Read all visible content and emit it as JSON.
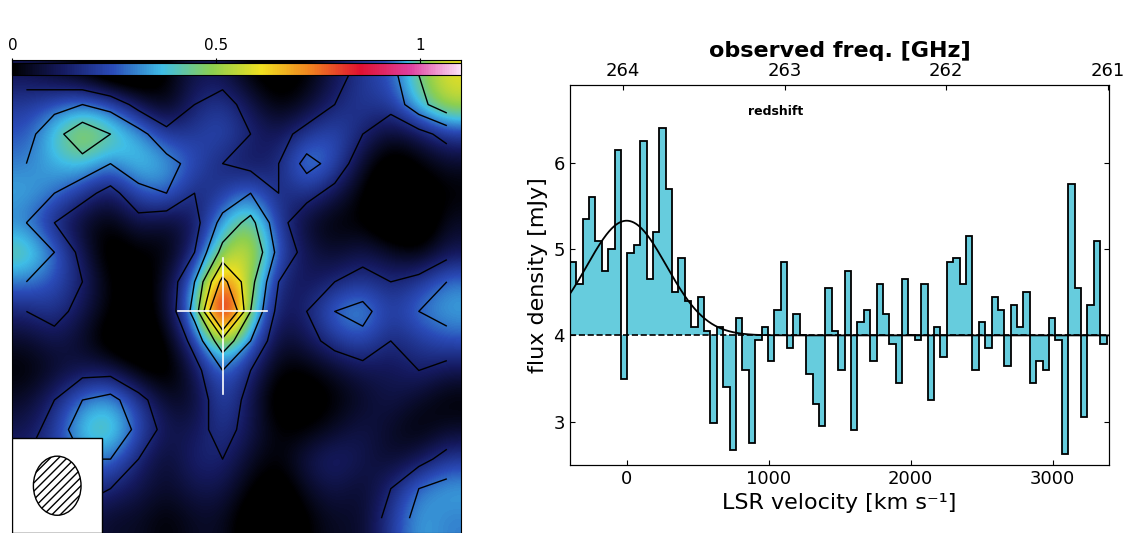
{
  "chart_data": [
    {
      "type": "heatmap",
      "tick_labels": false,
      "color_range": [
        0,
        1.1
      ],
      "color_ticks": [
        0,
        0.5,
        1
      ],
      "contour_levels": [
        -0.15,
        0.15,
        0.3,
        0.45,
        0.6,
        0.75
      ],
      "cells": [
        [
          0.1,
          0.05,
          0,
          -0.1,
          -0.1,
          0,
          0.1,
          0.1,
          0,
          -0.05,
          0,
          0.1,
          0.2,
          0.25,
          0.45,
          0.6
        ],
        [
          0.2,
          0.25,
          0.3,
          0.25,
          0.1,
          0,
          0.15,
          0.2,
          0.1,
          0,
          0.05,
          0.15,
          0.2,
          0.2,
          0.4,
          0.55
        ],
        [
          0.25,
          0.4,
          0.55,
          0.45,
          0.35,
          0.2,
          0.2,
          0.25,
          0.15,
          0.1,
          0.2,
          0.25,
          0.15,
          0.05,
          0.1,
          0.2
        ],
        [
          0.3,
          0.35,
          0.4,
          0.3,
          0.4,
          0.35,
          0.25,
          0.15,
          0.1,
          0.15,
          0.35,
          0.25,
          0.05,
          -0.05,
          0,
          0.05
        ],
        [
          0.35,
          0.3,
          0.2,
          0.1,
          0.25,
          0.3,
          0.15,
          0.2,
          0.3,
          0.15,
          0.2,
          0.1,
          0,
          -0.1,
          -0.05,
          0
        ],
        [
          0.3,
          0.15,
          0.05,
          0,
          0.1,
          0.05,
          0.1,
          0.35,
          0.5,
          0.2,
          0.05,
          0,
          0,
          -0.1,
          -0.1,
          0.05
        ],
        [
          0.45,
          0.3,
          0.1,
          -0.05,
          0,
          0,
          0.15,
          0.5,
          0.6,
          0.25,
          0.1,
          0.05,
          0.1,
          0.05,
          0,
          0.1
        ],
        [
          0.3,
          0.25,
          0.15,
          0,
          -0.05,
          0.05,
          0.3,
          0.8,
          0.5,
          0.15,
          0.1,
          0.15,
          0.2,
          0.15,
          0.2,
          0.3
        ],
        [
          0.15,
          0.2,
          0.1,
          0,
          -0.05,
          0.05,
          0.35,
          1.1,
          0.45,
          0.1,
          0.15,
          0.3,
          0.35,
          0.2,
          0.3,
          0.35
        ],
        [
          0.05,
          0.1,
          0.05,
          -0.05,
          -0.1,
          0,
          0.2,
          0.55,
          0.3,
          0.05,
          0.1,
          0.2,
          0.25,
          0.15,
          0.2,
          0.25
        ],
        [
          0,
          0.05,
          0.1,
          0.1,
          0,
          -0.05,
          0.1,
          0.3,
          0.15,
          0,
          0,
          0.05,
          0.1,
          0.1,
          0.15,
          0.1
        ],
        [
          0.05,
          0.15,
          0.3,
          0.35,
          0.2,
          0.05,
          0.05,
          0.25,
          0.1,
          -0.05,
          -0.05,
          0,
          0.05,
          0.1,
          0.05,
          0
        ],
        [
          0.1,
          0.2,
          0.4,
          0.45,
          0.25,
          0.1,
          0.1,
          0.2,
          0.1,
          0,
          0,
          0.05,
          0.1,
          0.05,
          0,
          0.05
        ],
        [
          0.15,
          0.2,
          0.3,
          0.3,
          0.15,
          0.05,
          0.15,
          0.15,
          0.05,
          0,
          0.1,
          0.15,
          0.1,
          0.05,
          0.1,
          0.2
        ],
        [
          0.1,
          0.15,
          0.2,
          0.15,
          0.1,
          0.05,
          0.1,
          0.1,
          0,
          -0.05,
          0.05,
          0.1,
          0.05,
          0.15,
          0.3,
          0.35
        ],
        [
          0.05,
          0.1,
          0.1,
          0.05,
          0.05,
          0,
          0.05,
          0.05,
          -0.05,
          -0.1,
          0,
          0.05,
          0.05,
          0.2,
          0.35,
          0.3
        ]
      ]
    },
    {
      "type": "histogram",
      "color": "#66ccdd",
      "x_label": "LSR velocity [km s⁻¹]",
      "y_label": "flux density [mJy]",
      "x2_label": "observed freq. [GHz]",
      "xlim": [
        -400,
        3400
      ],
      "xticks": [
        0,
        1000,
        2000,
        3000
      ],
      "ylim": [
        2.5,
        6.9
      ],
      "yticks": [
        3,
        4,
        5,
        6
      ],
      "x2lim": [
        264.33,
        260.99
      ],
      "x2ticks": [
        264,
        263,
        262,
        261
      ],
      "baseline": 4.0,
      "fit": {
        "center": 0,
        "peak": 5.33,
        "fwhm": 660
      },
      "annotations": [
        {
          "text": "redshift",
          "x": 1050,
          "y": 6.6
        }
      ],
      "bins": [
        -400,
        -355,
        -310,
        -265,
        -220,
        -175,
        -130,
        -85,
        -40,
        5,
        50,
        95,
        140,
        185,
        230,
        275,
        320,
        365,
        410,
        455,
        500,
        545,
        590,
        635,
        680,
        725,
        770,
        815,
        860,
        905,
        950,
        995,
        1040,
        1085,
        1130,
        1175,
        1220,
        1265,
        1310,
        1355,
        1400,
        1445,
        1490,
        1535,
        1580,
        1625,
        1670,
        1715,
        1760,
        1805,
        1850,
        1895,
        1940,
        1985,
        2030,
        2075,
        2120,
        2165,
        2210,
        2255,
        2300,
        2345,
        2390,
        2435,
        2480,
        2525,
        2570,
        2615,
        2660,
        2705,
        2750,
        2795,
        2840,
        2885,
        2930,
        2975,
        3020,
        3065,
        3110,
        3155,
        3200,
        3245,
        3290,
        3335,
        3380
      ],
      "counts": [
        4.85,
        4.6,
        5.35,
        5.6,
        5.1,
        4.75,
        5.0,
        6.15,
        3.5,
        4.95,
        5.05,
        6.25,
        4.65,
        5.2,
        6.4,
        5.7,
        4.5,
        4.9,
        4.4,
        4.1,
        4.45,
        4.05,
        2.98,
        4.1,
        3.4,
        2.67,
        4.2,
        3.6,
        2.75,
        3.95,
        4.1,
        3.7,
        4.3,
        4.85,
        3.85,
        4.25,
        4.0,
        3.55,
        3.2,
        2.95,
        4.55,
        4.05,
        3.6,
        4.75,
        2.9,
        4.15,
        4.3,
        3.7,
        4.6,
        4.25,
        3.9,
        3.45,
        4.65,
        4.0,
        3.95,
        4.6,
        3.25,
        4.1,
        3.75,
        4.85,
        4.9,
        4.6,
        5.15,
        3.6,
        4.15,
        3.85,
        4.45,
        4.3,
        3.65,
        4.35,
        4.1,
        4.5,
        3.45,
        3.7,
        3.6,
        4.2,
        3.95,
        2.62,
        5.75,
        4.55,
        3.05,
        4.35,
        5.1,
        3.9
      ]
    }
  ]
}
